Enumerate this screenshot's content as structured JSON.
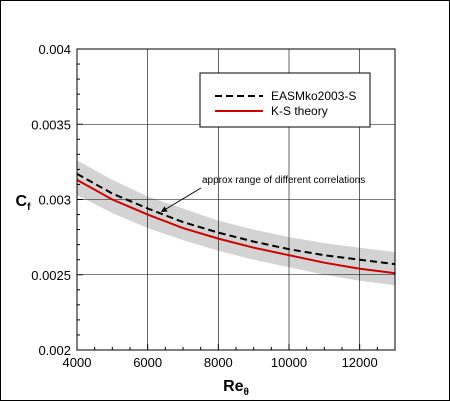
{
  "chart_data": {
    "type": "line",
    "xlabel": "Re",
    "xlabel_sub": "θ",
    "ylabel": "C",
    "ylabel_sub": "f",
    "xlim": [
      4000,
      13000
    ],
    "ylim": [
      0.002,
      0.004
    ],
    "x_ticks": [
      4000,
      6000,
      8000,
      10000,
      12000
    ],
    "x_tick_labels": [
      "4000",
      "6000",
      "8000",
      "10000",
      "12000"
    ],
    "y_ticks": [
      0.002,
      0.0025,
      0.003,
      0.0035,
      0.004
    ],
    "y_tick_labels": [
      "0.002",
      "0.0025",
      "0.003",
      "0.0035",
      "0.004"
    ],
    "grid": true,
    "legend_position": "top-right",
    "series": [
      {
        "name": "EASMko2003-S",
        "style": "dashed",
        "color": "#000000",
        "x": [
          4000,
          5000,
          6000,
          7000,
          8000,
          9000,
          10000,
          11000,
          12000,
          13000
        ],
        "y": [
          0.00317,
          0.00304,
          0.00294,
          0.00285,
          0.00278,
          0.00272,
          0.00267,
          0.00263,
          0.0026,
          0.00257
        ]
      },
      {
        "name": "K-S theory",
        "style": "solid",
        "color": "#cc0000",
        "x": [
          4000,
          5000,
          6000,
          7000,
          8000,
          9000,
          10000,
          11000,
          12000,
          13000
        ],
        "y": [
          0.00313,
          0.003,
          0.0029,
          0.00281,
          0.00274,
          0.00268,
          0.00263,
          0.00258,
          0.00254,
          0.00251
        ]
      }
    ],
    "band": {
      "color": "#d3d3d3",
      "x": [
        4000,
        5000,
        6000,
        7000,
        8000,
        9000,
        10000,
        11000,
        12000,
        13000
      ],
      "upper": [
        0.00326,
        0.00313,
        0.00302,
        0.00294,
        0.00286,
        0.0028,
        0.00275,
        0.00271,
        0.00268,
        0.00265
      ],
      "lower": [
        0.00303,
        0.00291,
        0.00281,
        0.00273,
        0.00266,
        0.0026,
        0.00255,
        0.0025,
        0.00246,
        0.00243
      ]
    },
    "annotations": [
      {
        "text": "approx range of different correlations",
        "target_x": 6400,
        "target_y": 0.00292
      }
    ]
  }
}
